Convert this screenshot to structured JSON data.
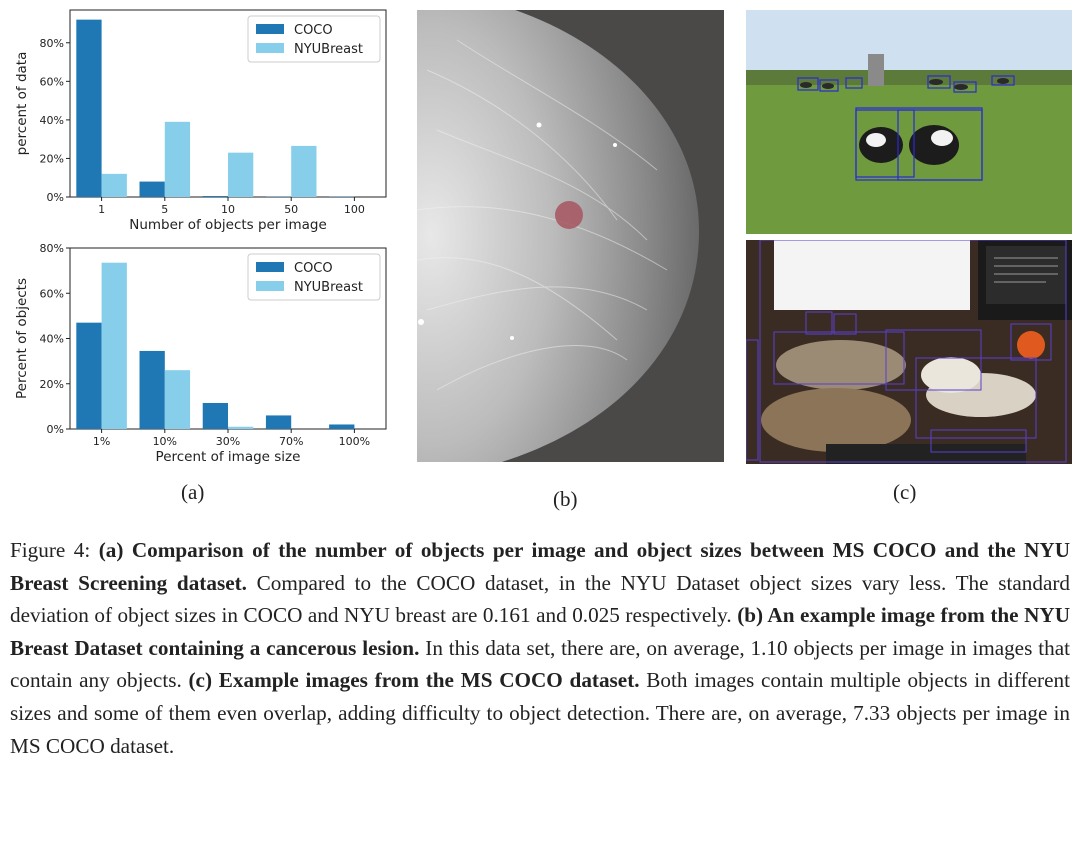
{
  "colors": {
    "coco": "#1f77b4",
    "nyu": "#87ceeb",
    "cowbox": "#2a2ad6",
    "catbox": "#5a3fd0"
  },
  "chart_data": [
    {
      "type": "bar",
      "categories": [
        "1",
        "5",
        "10",
        "50",
        "100"
      ],
      "series": [
        {
          "name": "COCO",
          "values": [
            92,
            8,
            0.5,
            0.2,
            0.2
          ]
        },
        {
          "name": "NYUBreast",
          "values": [
            12,
            39,
            23,
            26.5,
            0
          ]
        }
      ],
      "title": "",
      "xlabel": "Number of objects per image",
      "ylabel": "percent of data",
      "ylim": [
        0,
        97
      ],
      "yticks": [
        0,
        20,
        40,
        60,
        80
      ],
      "ytick_labels": [
        "0%",
        "20%",
        "40%",
        "60%",
        "80%"
      ],
      "legend": [
        "COCO",
        "NYUBreast"
      ],
      "legend_position": "top-right"
    },
    {
      "type": "bar",
      "categories": [
        "1%",
        "10%",
        "30%",
        "70%",
        "100%"
      ],
      "series": [
        {
          "name": "COCO",
          "values": [
            47,
            34.5,
            11.5,
            6,
            2
          ]
        },
        {
          "name": "NYUBreast",
          "values": [
            73.5,
            26,
            1,
            0,
            0
          ]
        }
      ],
      "title": "",
      "xlabel": "Percent of image size",
      "ylabel": "Percent of objects",
      "ylim": [
        0,
        80
      ],
      "yticks": [
        0,
        20,
        40,
        60,
        80
      ],
      "ytick_labels": [
        "0%",
        "20%",
        "40%",
        "60%",
        "80%"
      ],
      "legend": [
        "COCO",
        "NYUBreast"
      ],
      "legend_position": "top-right"
    }
  ],
  "labels": {
    "a": "(a)",
    "b": "(b)",
    "c": "(c)"
  },
  "caption": {
    "prefix": "Figure 4: ",
    "a_bold": "(a) Comparison of the number of objects per image and object sizes between MS COCO and the NYU Breast Screening dataset.",
    "a_text": " Compared to the COCO dataset, in the NYU Dataset object sizes vary less. The standard deviation of object sizes in COCO and NYU breast are 0.161 and 0.025 respectively. ",
    "b_bold": "(b) An example image from the NYU Breast Dataset containing a cancerous lesion.",
    "b_text": " In this data set, there are, on average, 1.10 objects per image in images that contain any objects. ",
    "c_bold": "(c) Example images from the MS COCO dataset.",
    "c_text": " Both images contain multiple objects in different sizes and some of them even overlap, adding difficulty to object detection. There are, on average, 7.33 objects per image in MS COCO dataset."
  }
}
